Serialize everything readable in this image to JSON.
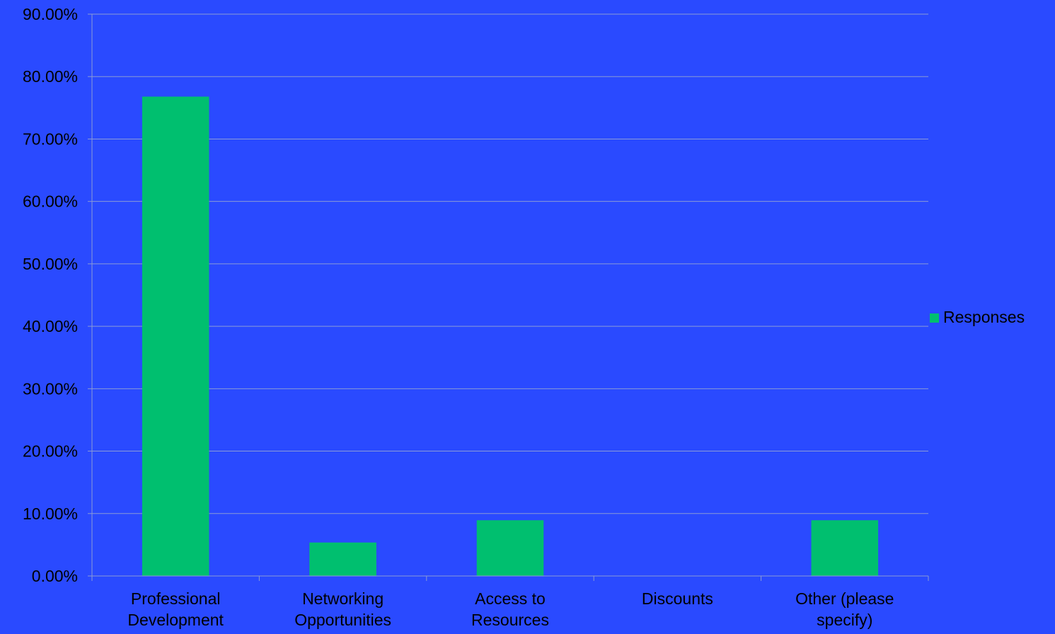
{
  "colors": {
    "background": "#2a4aff",
    "bar": "#00bf6f",
    "gridline": "#8a9ad6",
    "axis": "#8a9ad6",
    "text": "#000000"
  },
  "chart_data": {
    "type": "bar",
    "categories": [
      [
        "Professional",
        "Development"
      ],
      [
        "Networking",
        "Opportunities"
      ],
      [
        "Access to",
        "Resources"
      ],
      [
        "Discounts"
      ],
      [
        "Other (please",
        "specify)"
      ]
    ],
    "series": [
      {
        "name": "Responses",
        "values": [
          76.79,
          5.36,
          8.93,
          0,
          8.93
        ]
      }
    ],
    "ylim": [
      0,
      90
    ],
    "yticks": [
      0,
      10,
      20,
      30,
      40,
      50,
      60,
      70,
      80,
      90
    ],
    "ytick_labels": [
      "0.00%",
      "10.00%",
      "20.00%",
      "30.00%",
      "40.00%",
      "50.00%",
      "60.00%",
      "70.00%",
      "80.00%",
      "90.00%"
    ],
    "grid": true,
    "legend": "right",
    "title": "",
    "xlabel": "",
    "ylabel": ""
  }
}
